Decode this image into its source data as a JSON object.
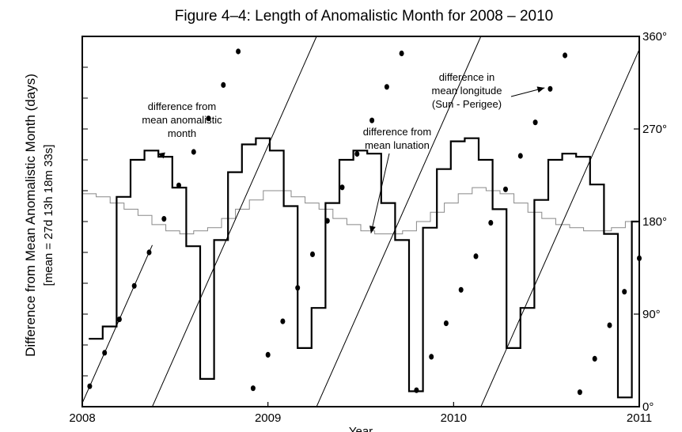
{
  "chart_data": {
    "type": "line",
    "title": "Figure 4–4: Length of  Anomalistic Month for 2008 – 2010",
    "ylabel": "Difference from Mean Anomalistic Month (days)",
    "ylabel_sub": "[mean = 27d 13h 18m 33s]",
    "xlabel": "Year",
    "x_ticks": [
      {
        "value": 2008,
        "label": "2008"
      },
      {
        "value": 2009,
        "label": "2009"
      },
      {
        "value": 2010,
        "label": "2010"
      },
      {
        "value": 2011,
        "label": "2011"
      }
    ],
    "xlim": [
      2008,
      2011
    ],
    "ylim": [
      -3,
      3
    ],
    "y_minor_ticks": [
      -2.5,
      -2,
      -1.5,
      -1,
      -0.5,
      0,
      0.5,
      1,
      1.5,
      2,
      2.5
    ],
    "y2_ticks": [
      {
        "value": 0,
        "label": "0°"
      },
      {
        "value": 90,
        "label": "90°"
      },
      {
        "value": 180,
        "label": "180°"
      },
      {
        "value": 270,
        "label": "270°"
      },
      {
        "value": 360,
        "label": "360°"
      }
    ],
    "y2lim": [
      0,
      360
    ],
    "series": [
      {
        "name": "difference from mean anomalistic month",
        "style": "step",
        "color": "#000000",
        "x": [
          2008.035,
          2008.11,
          2008.185,
          2008.26,
          2008.335,
          2008.41,
          2008.485,
          2008.56,
          2008.635,
          2008.71,
          2008.785,
          2008.86,
          2008.935,
          2009.01,
          2009.085,
          2009.16,
          2009.235,
          2009.31,
          2009.385,
          2009.46,
          2009.535,
          2009.61,
          2009.685,
          2009.76,
          2009.835,
          2009.91,
          2009.985,
          2010.06,
          2010.135,
          2010.21,
          2010.285,
          2010.36,
          2010.435,
          2010.51,
          2010.585,
          2010.66,
          2010.735,
          2010.81,
          2010.885,
          2010.96,
          2010.995
        ],
        "values": [
          -1.9,
          -1.7,
          0.4,
          1.0,
          1.15,
          1.05,
          0.55,
          -0.4,
          -2.55,
          -0.3,
          0.8,
          1.25,
          1.35,
          1.15,
          0.25,
          -2.05,
          -1.4,
          0.3,
          1.0,
          1.15,
          1.1,
          0.3,
          -0.3,
          -2.75,
          -0.1,
          0.85,
          1.3,
          1.35,
          1.0,
          0.2,
          -2.05,
          -1.4,
          0.35,
          1.0,
          1.1,
          1.05,
          0.6,
          -0.2,
          -2.85,
          0.0,
          0.0
        ]
      },
      {
        "name": "difference from mean lunation",
        "style": "step",
        "color": "#888888",
        "x": [
          2008.0,
          2008.075,
          2008.15,
          2008.225,
          2008.3,
          2008.375,
          2008.45,
          2008.525,
          2008.6,
          2008.675,
          2008.75,
          2008.825,
          2008.9,
          2008.975,
          2009.05,
          2009.125,
          2009.2,
          2009.275,
          2009.35,
          2009.425,
          2009.5,
          2009.575,
          2009.65,
          2009.725,
          2009.8,
          2009.875,
          2009.95,
          2010.025,
          2010.1,
          2010.175,
          2010.25,
          2010.325,
          2010.4,
          2010.475,
          2010.55,
          2010.625,
          2010.7,
          2010.775,
          2010.85,
          2010.925,
          2011.0
        ],
        "values": [
          0.45,
          0.4,
          0.3,
          0.2,
          0.1,
          -0.05,
          -0.15,
          -0.2,
          -0.15,
          -0.1,
          0.05,
          0.2,
          0.35,
          0.5,
          0.5,
          0.4,
          0.3,
          0.2,
          0.05,
          -0.05,
          -0.15,
          -0.2,
          -0.2,
          -0.15,
          0.0,
          0.15,
          0.3,
          0.45,
          0.55,
          0.5,
          0.45,
          0.3,
          0.15,
          0.05,
          -0.05,
          -0.1,
          -0.15,
          -0.15,
          -0.1,
          0.0,
          0.0
        ]
      },
      {
        "name": "difference in mean longitude (Sun - Perigee)",
        "axis": "right",
        "style": "line-with-markers",
        "color": "#000000",
        "period_years": 0.8847,
        "segments": [
          {
            "x_start": 2007.9913,
            "x_end": 2008.3773
          },
          {
            "x_start": 2008.3773,
            "x_end": 2009.262
          },
          {
            "x_start": 2009.262,
            "x_end": 2010.1467
          },
          {
            "x_start": 2010.1467,
            "x_end": 2011.0
          }
        ],
        "markers_x": [
          2008.04,
          2008.12,
          2008.2,
          2008.28,
          2008.36,
          2008.44,
          2008.52,
          2008.6,
          2008.68,
          2008.76,
          2008.84,
          2008.92,
          2009.0,
          2009.08,
          2009.16,
          2009.24,
          2009.32,
          2009.4,
          2009.48,
          2009.56,
          2009.64,
          2009.72,
          2009.8,
          2009.88,
          2009.96,
          2010.04,
          2010.12,
          2010.2,
          2010.28,
          2010.36,
          2010.44,
          2010.52,
          2010.6,
          2010.68,
          2010.76,
          2010.84,
          2010.92,
          2011.0
        ]
      }
    ],
    "annotations": [
      {
        "name": "anomalistic",
        "lines": [
          "difference from",
          "mean anomalistic",
          "month"
        ],
        "arrow_to": [
          2008.405,
          1.1
        ]
      },
      {
        "name": "lunation",
        "lines": [
          "difference from",
          "mean lunation"
        ],
        "arrow_to": [
          2009.555,
          -0.19
        ]
      },
      {
        "name": "longitude",
        "lines": [
          "difference in",
          "mean longitude",
          "(Sun - Perigee)"
        ],
        "arrow_to": [
          2010.49,
          310
        ]
      }
    ]
  }
}
